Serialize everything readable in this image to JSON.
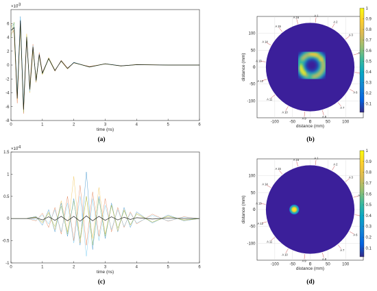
{
  "colors": {
    "background": "#ffffff",
    "disk": "#3b1f9a",
    "frame": "#262626",
    "grid": "#d9d9d9"
  },
  "colormap": "parula",
  "chart_data": [
    {
      "id": "a",
      "caption": "(a)",
      "type": "line",
      "xlabel": "time (ns)",
      "ylabel": "",
      "xlim": [
        0,
        6
      ],
      "ylim": [
        -8,
        8
      ],
      "y_exponent": "×10",
      "y_exponent_power": "-3",
      "xticks": [
        "0",
        "1",
        "2",
        "3",
        "4",
        "5",
        "6"
      ],
      "yticks": [
        "-8",
        "-6",
        "-4",
        "-2",
        "0",
        "2",
        "4",
        "6"
      ],
      "x": [
        0.0,
        0.1,
        0.2,
        0.3,
        0.4,
        0.5,
        0.6,
        0.7,
        0.8,
        0.9,
        1.0,
        1.2,
        1.4,
        1.6,
        1.8,
        2.0,
        2.5,
        3.0,
        3.5,
        4.0,
        5.0,
        6.0
      ],
      "series": [
        {
          "color": "#0072bd",
          "values": [
            5.5,
            6.0,
            -4.5,
            7.0,
            -6.5,
            4.0,
            -3.5,
            2.5,
            -2.0,
            1.5,
            -1.2,
            1.0,
            -0.8,
            0.6,
            -0.5,
            0.4,
            -0.3,
            0.2,
            -0.1,
            0.05,
            0.0,
            0.0
          ]
        },
        {
          "color": "#d95319",
          "values": [
            4.5,
            5.0,
            -5.5,
            6.5,
            -7.0,
            3.5,
            -3.0,
            3.0,
            -2.5,
            1.8,
            -1.0,
            0.9,
            -0.9,
            0.7,
            -0.4,
            0.3,
            -0.2,
            0.15,
            -0.1,
            0.05,
            0.0,
            0.0
          ]
        },
        {
          "color": "#edb120",
          "values": [
            6.0,
            4.5,
            -5.0,
            5.5,
            -6.0,
            4.5,
            -4.0,
            2.0,
            -1.8,
            1.3,
            -1.4,
            1.1,
            -0.7,
            0.5,
            -0.6,
            0.35,
            -0.25,
            0.2,
            -0.15,
            0.1,
            0.0,
            0.0
          ]
        },
        {
          "color": "#4dbeee",
          "values": [
            5.0,
            5.5,
            -4.0,
            6.8,
            -5.5,
            3.8,
            -3.8,
            2.8,
            -2.2,
            1.6,
            -1.1,
            0.95,
            -0.75,
            0.55,
            -0.45,
            0.38,
            -0.28,
            0.18,
            -0.12,
            0.06,
            0.0,
            0.0
          ]
        },
        {
          "color": "#77ac30",
          "values": [
            4.0,
            6.2,
            -4.8,
            6.0,
            -6.8,
            4.2,
            -3.2,
            2.6,
            -2.4,
            1.4,
            -1.3,
            0.85,
            -0.85,
            0.65,
            -0.5,
            0.32,
            -0.3,
            0.16,
            -0.14,
            0.04,
            0.0,
            0.0
          ]
        },
        {
          "color": "#000000",
          "values": [
            5.0,
            5.4,
            -4.8,
            6.4,
            -6.4,
            4.0,
            -3.5,
            2.6,
            -2.2,
            1.5,
            -1.2,
            0.95,
            -0.8,
            0.6,
            -0.5,
            0.35,
            -0.27,
            0.18,
            -0.12,
            0.05,
            0.0,
            0.0
          ]
        }
      ]
    },
    {
      "id": "b",
      "caption": "(b)",
      "type": "heatmap",
      "xlabel": "distance (mm)",
      "ylabel": "distance (mm)",
      "xlim": [
        -150,
        150
      ],
      "ylim": [
        -150,
        150
      ],
      "xticks": [
        "-100",
        "-50",
        "0",
        "50",
        "100"
      ],
      "yticks": [
        "100",
        "50",
        "0",
        "-50",
        "-100"
      ],
      "colorbar_ticks": [
        "0.1",
        "0.2",
        "0.3",
        "0.4",
        "0.5",
        "0.6",
        "0.7",
        "0.8",
        "0.9",
        "1"
      ],
      "antennas": [
        "A 1",
        "A 2",
        "A 3",
        "A 4",
        "A 5",
        "A 6",
        "A 7",
        "A 8",
        "A 9",
        "A 10",
        "A 11",
        "A 12",
        "A 13",
        "A 14",
        "A 15",
        "A 16"
      ],
      "feature": {
        "shape": "ring",
        "center_mm": [
          5,
          5
        ],
        "radius_mm": 32,
        "peak": 1.0
      }
    },
    {
      "id": "c",
      "caption": "(c)",
      "type": "line",
      "xlabel": "time (ns)",
      "ylabel": "",
      "xlim": [
        0,
        6
      ],
      "ylim": [
        -1,
        1.5
      ],
      "y_exponent": "×10",
      "y_exponent_power": "-4",
      "xticks": [
        "0",
        "1",
        "2",
        "3",
        "4",
        "5",
        "6"
      ],
      "yticks": [
        "-1",
        "-0.5",
        "0",
        "0.5",
        "1",
        "1.5"
      ],
      "x": [
        0.0,
        0.5,
        0.8,
        1.0,
        1.2,
        1.4,
        1.6,
        1.8,
        2.0,
        2.2,
        2.4,
        2.6,
        2.8,
        3.0,
        3.2,
        3.4,
        3.6,
        3.8,
        4.0,
        4.5,
        5.0,
        5.5,
        6.0
      ],
      "series": [
        {
          "color": "#0072bd",
          "values": [
            0.0,
            0.0,
            0.05,
            -0.15,
            0.2,
            -0.3,
            0.35,
            -0.4,
            0.45,
            -0.6,
            1.05,
            -0.7,
            0.5,
            -0.45,
            0.35,
            -0.3,
            0.25,
            -0.2,
            0.15,
            -0.1,
            0.08,
            -0.05,
            0.0
          ]
        },
        {
          "color": "#d95319",
          "values": [
            0.0,
            0.0,
            -0.05,
            0.12,
            -0.2,
            0.25,
            -0.35,
            0.5,
            -0.5,
            0.75,
            -0.6,
            0.6,
            -0.4,
            0.45,
            -0.3,
            0.25,
            -0.2,
            0.15,
            -0.12,
            0.1,
            -0.06,
            0.04,
            0.0
          ]
        },
        {
          "color": "#edb120",
          "values": [
            0.0,
            0.0,
            0.04,
            -0.1,
            0.15,
            -0.25,
            0.4,
            -0.3,
            0.95,
            -0.55,
            0.5,
            -0.45,
            0.7,
            -0.35,
            0.3,
            -0.28,
            0.2,
            -0.15,
            0.12,
            -0.08,
            0.06,
            -0.04,
            0.0
          ]
        },
        {
          "color": "#4dbeee",
          "values": [
            0.0,
            0.0,
            -0.03,
            0.08,
            -0.12,
            0.2,
            -0.3,
            0.35,
            -0.55,
            0.5,
            -0.85,
            0.45,
            -0.5,
            0.3,
            -0.25,
            0.2,
            -0.18,
            0.12,
            -0.1,
            0.07,
            -0.05,
            0.03,
            0.0
          ]
        },
        {
          "color": "#77ac30",
          "values": [
            0.0,
            0.0,
            0.03,
            -0.08,
            0.12,
            -0.18,
            0.28,
            -0.35,
            0.4,
            -0.45,
            0.5,
            -0.6,
            0.45,
            -0.4,
            0.3,
            -0.22,
            0.18,
            -0.14,
            0.1,
            -0.08,
            0.05,
            -0.03,
            0.0
          ]
        },
        {
          "color": "#000000",
          "values": [
            0.0,
            0.0,
            0.02,
            -0.03,
            0.04,
            -0.04,
            0.05,
            -0.05,
            0.05,
            -0.06,
            0.06,
            -0.05,
            0.05,
            -0.04,
            0.04,
            -0.03,
            0.03,
            -0.02,
            0.02,
            -0.01,
            0.01,
            0.0,
            0.0
          ]
        }
      ]
    },
    {
      "id": "d",
      "caption": "(d)",
      "type": "heatmap",
      "xlabel": "distance (mm)",
      "ylabel": "distance (mm)",
      "xlim": [
        -150,
        150
      ],
      "ylim": [
        -150,
        150
      ],
      "xticks": [
        "-100",
        "-50",
        "0",
        "50",
        "100"
      ],
      "yticks": [
        "100",
        "50",
        "0",
        "-50",
        "-100"
      ],
      "colorbar_ticks": [
        "0.1",
        "0.2",
        "0.3",
        "0.4",
        "0.5",
        "0.6",
        "0.7",
        "0.8",
        "0.9",
        "1"
      ],
      "antennas": [
        "A 1",
        "A 2",
        "A 3",
        "A 4",
        "A 5",
        "A 6",
        "A 7",
        "A 8",
        "A 9",
        "A 10",
        "A 11",
        "A 12",
        "A 13",
        "A 14",
        "A 15",
        "A 16"
      ],
      "feature": {
        "shape": "spot",
        "center_mm": [
          -45,
          0
        ],
        "radius_mm": 8,
        "peak": 1.0
      }
    }
  ]
}
